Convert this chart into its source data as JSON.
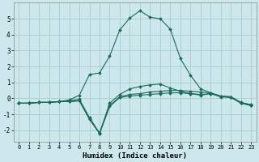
{
  "xlabel": "Humidex (Indice chaleur)",
  "background_color": "#cde8ed",
  "grid_color": "#aacccc",
  "line_color": "#1a6b5a",
  "xlim": [
    -0.5,
    23.5
  ],
  "ylim": [
    -2.7,
    6.0
  ],
  "yticks": [
    -2,
    -1,
    0,
    1,
    2,
    3,
    4,
    5
  ],
  "xticks": [
    0,
    1,
    2,
    3,
    4,
    5,
    6,
    7,
    8,
    9,
    10,
    11,
    12,
    13,
    14,
    15,
    16,
    17,
    18,
    19,
    20,
    21,
    22,
    23
  ],
  "x": [
    0,
    1,
    2,
    3,
    4,
    5,
    6,
    7,
    8,
    9,
    10,
    11,
    12,
    13,
    14,
    15,
    16,
    17,
    18,
    19,
    20,
    21,
    22,
    23
  ],
  "series": [
    [
      -0.3,
      -0.3,
      -0.25,
      -0.25,
      -0.2,
      -0.2,
      -0.15,
      -1.3,
      -2.2,
      -0.5,
      0.05,
      0.15,
      0.2,
      0.25,
      0.3,
      0.35,
      0.35,
      0.3,
      0.25,
      0.3,
      0.1,
      0.05,
      -0.3,
      -0.45
    ],
    [
      -0.3,
      -0.3,
      -0.25,
      -0.25,
      -0.2,
      -0.2,
      -0.15,
      -1.3,
      -2.2,
      -0.45,
      0.1,
      0.25,
      0.3,
      0.4,
      0.45,
      0.5,
      0.5,
      0.45,
      0.4,
      0.35,
      0.12,
      0.1,
      -0.28,
      -0.4
    ],
    [
      -0.3,
      -0.3,
      -0.25,
      -0.25,
      -0.2,
      -0.15,
      -0.05,
      -1.2,
      -2.18,
      -0.3,
      0.25,
      0.6,
      0.75,
      0.85,
      0.9,
      0.65,
      0.45,
      0.3,
      0.2,
      0.3,
      0.12,
      0.1,
      -0.25,
      -0.4
    ],
    [
      -0.3,
      -0.3,
      -0.25,
      -0.25,
      -0.2,
      -0.1,
      0.2,
      1.5,
      1.6,
      2.65,
      4.3,
      5.05,
      5.5,
      5.1,
      5.0,
      4.35,
      2.5,
      1.45,
      0.6,
      0.35,
      0.15,
      0.1,
      -0.3,
      -0.45
    ]
  ]
}
